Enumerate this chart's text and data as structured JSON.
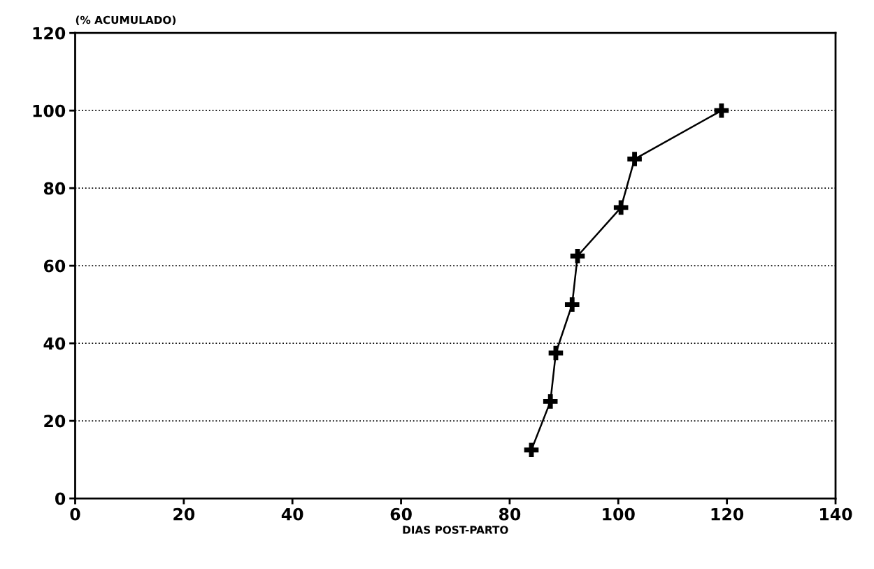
{
  "chart_data": {
    "type": "line",
    "ylabel": "(% ACUMULADO)",
    "xlabel": "DIAS POST-PARTO",
    "x": [
      84,
      87.5,
      88.5,
      91.5,
      92.5,
      100.5,
      103,
      119
    ],
    "series": [
      {
        "color": "#000000",
        "values": [
          12.5,
          25,
          37.5,
          50,
          62.5,
          75,
          87.5,
          100
        ]
      }
    ],
    "xlim": [
      0,
      140
    ],
    "xticks": [
      0,
      20,
      40,
      60,
      80,
      100,
      120,
      140
    ],
    "ylim": [
      0,
      120
    ],
    "yticks": [
      0,
      20,
      40,
      60,
      80,
      100,
      120
    ],
    "grid": "y",
    "marker": "cross",
    "line_style": "solid"
  }
}
